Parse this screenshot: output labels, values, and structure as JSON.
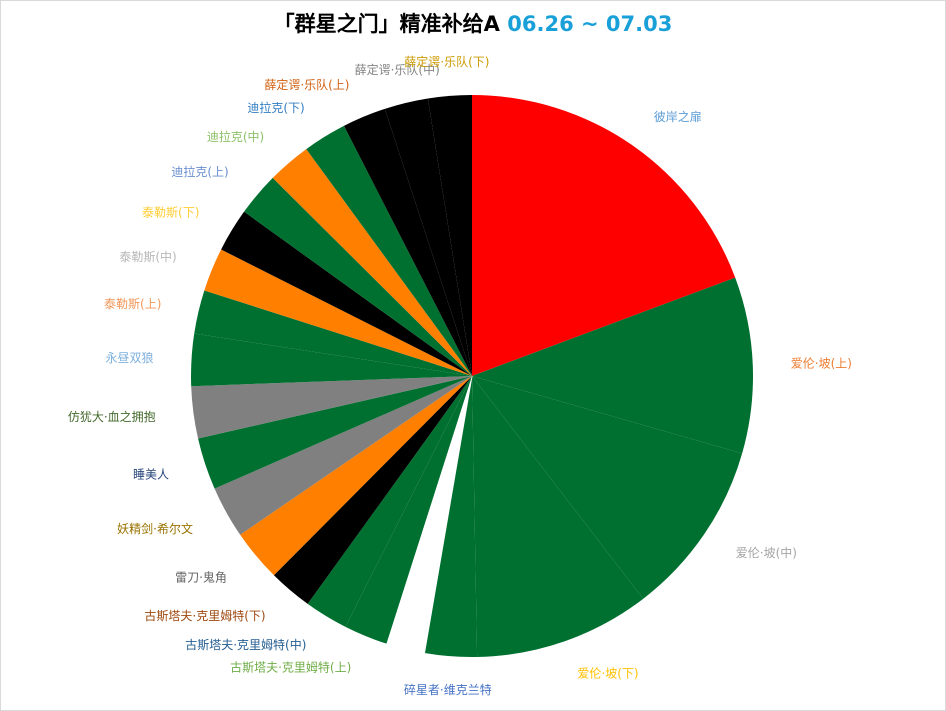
{
  "title": {
    "text": "「群星之门」精准补给A",
    "dates": "06.26 ~ 07.03"
  },
  "chart_data": {
    "type": "pie",
    "title": "「群星之门」精准补给A 06.26 ~ 07.03",
    "slices": [
      {
        "label": "彼岸之扉",
        "value": 20.0,
        "color": "#ff0000",
        "label_color": "#5b9bd5"
      },
      {
        "label": "爱伦·坡(上)",
        "value": 10.5,
        "color": "#007030",
        "label_color": "#ed7d31"
      },
      {
        "label": "爱伦·坡(中)",
        "value": 10.5,
        "color": "#007030",
        "label_color": "#a5a5a5"
      },
      {
        "label": "爱伦·坡(下)",
        "value": 10.5,
        "color": "#007030",
        "label_color": "#ffc000"
      },
      {
        "label": "碎星者·维克兰特",
        "value": 3.1,
        "color": "#007030",
        "label_color": "#4472c4"
      },
      {
        "label": "白色切片",
        "value": 2.3,
        "color": "#ffffff",
        "label_color": "",
        "hidden_label": true
      },
      {
        "label": "古斯塔夫·克里姆特(上)",
        "value": 2.6,
        "color": "#007030",
        "label_color": "#70ad47"
      },
      {
        "label": "古斯塔夫·克里姆特(中)",
        "value": 2.6,
        "color": "#007030",
        "label_color": "#255e91"
      },
      {
        "label": "古斯塔夫·克里姆特(下)",
        "value": 2.6,
        "color": "#000000",
        "label_color": "#9e480e"
      },
      {
        "label": "雷刀·鬼角",
        "value": 3.1,
        "color": "#ff7f00",
        "label_color": "#636363"
      },
      {
        "label": "妖精剑·希尔文",
        "value": 3.1,
        "color": "#808080",
        "label_color": "#997300"
      },
      {
        "label": "睡美人",
        "value": 3.1,
        "color": "#007030",
        "label_color": "#264478"
      },
      {
        "label": "仿犹大·血之拥抱",
        "value": 3.1,
        "color": "#808080",
        "label_color": "#43682b"
      },
      {
        "label": "永昼双狼",
        "value": 3.1,
        "color": "#007030",
        "label_color": "#7cafdd"
      },
      {
        "label": "泰勒斯(上)",
        "value": 2.6,
        "color": "#007030",
        "label_color": "#f1975a"
      },
      {
        "label": "泰勒斯(中)",
        "value": 2.6,
        "color": "#ff7f00",
        "label_color": "#b7b7b7"
      },
      {
        "label": "泰勒斯(下)",
        "value": 2.6,
        "color": "#000000",
        "label_color": "#ffcd33"
      },
      {
        "label": "迪拉克(上)",
        "value": 2.6,
        "color": "#007030",
        "label_color": "#698ed0"
      },
      {
        "label": "迪拉克(中)",
        "value": 2.6,
        "color": "#ff7f00",
        "label_color": "#8cc168"
      },
      {
        "label": "迪拉克(下)",
        "value": 2.6,
        "color": "#007030",
        "label_color": "#327dc2"
      },
      {
        "label": "薛定谔·乐队(上)",
        "value": 2.6,
        "color": "#000000",
        "label_color": "#d26012"
      },
      {
        "label": "薛定谔·乐队(中)",
        "value": 2.6,
        "color": "#000000",
        "label_color": "#848484"
      },
      {
        "label": "薛定谔·乐队(下)",
        "value": 2.6,
        "color": "#000000",
        "label_color": "#cc9a00"
      }
    ]
  }
}
